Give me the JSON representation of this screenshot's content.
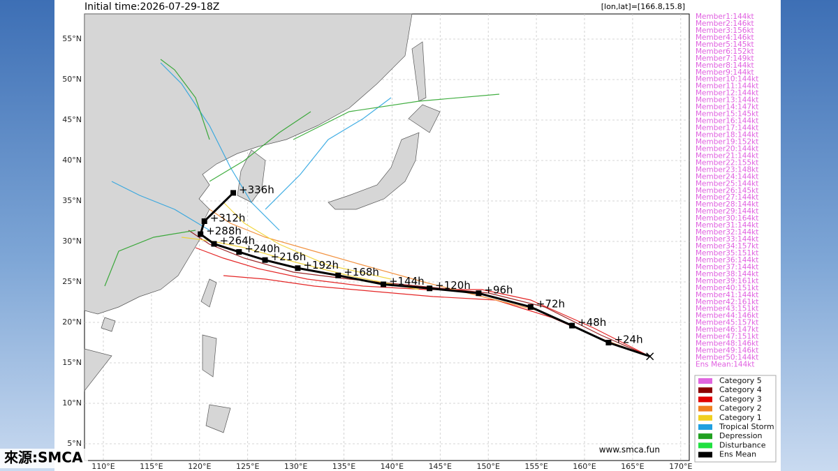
{
  "header": {
    "init_time": "Initial time:2026-07-29-18Z",
    "position": "[lon,lat]=[166.8,15.8]"
  },
  "map": {
    "lon_ticks": [
      {
        "value": 110,
        "label": "110°E"
      },
      {
        "value": 115,
        "label": "115°E"
      },
      {
        "value": 120,
        "label": "120°E"
      },
      {
        "value": 125,
        "label": "125°E"
      },
      {
        "value": 130,
        "label": "130°E"
      },
      {
        "value": 135,
        "label": "135°E"
      },
      {
        "value": 140,
        "label": "140°E"
      },
      {
        "value": 145,
        "label": "145°E"
      },
      {
        "value": 150,
        "label": "150°E"
      },
      {
        "value": 155,
        "label": "155°E"
      },
      {
        "value": 160,
        "label": "160°E"
      },
      {
        "value": 165,
        "label": "165°E"
      },
      {
        "value": 170,
        "label": "170°E"
      }
    ],
    "lat_ticks": [
      {
        "value": 5,
        "label": "5°N"
      },
      {
        "value": 10,
        "label": "10°N"
      },
      {
        "value": 15,
        "label": "15°N"
      },
      {
        "value": 20,
        "label": "20°N"
      },
      {
        "value": 25,
        "label": "25°N"
      },
      {
        "value": 30,
        "label": "30°N"
      },
      {
        "value": 35,
        "label": "35°N"
      },
      {
        "value": 40,
        "label": "40°N"
      },
      {
        "value": 45,
        "label": "45°N"
      },
      {
        "value": 50,
        "label": "50°N"
      },
      {
        "value": 55,
        "label": "55°N"
      }
    ],
    "start": {
      "lon": 166.8,
      "lat": 15.8
    },
    "mean_track": [
      {
        "label": "+24h",
        "lon": 162.5,
        "lat": 17.5
      },
      {
        "label": "+48h",
        "lon": 158.7,
        "lat": 19.6
      },
      {
        "label": "+72h",
        "lon": 154.4,
        "lat": 21.9
      },
      {
        "label": "+96h",
        "lon": 149.0,
        "lat": 23.6
      },
      {
        "label": "+120h",
        "lon": 143.9,
        "lat": 24.2
      },
      {
        "label": "+144h",
        "lon": 139.1,
        "lat": 24.7
      },
      {
        "label": "+168h",
        "lon": 134.4,
        "lat": 25.8
      },
      {
        "label": "+192h",
        "lon": 130.2,
        "lat": 26.7
      },
      {
        "label": "+216h",
        "lon": 126.8,
        "lat": 27.7
      },
      {
        "label": "+240h",
        "lon": 124.1,
        "lat": 28.7
      },
      {
        "label": "+264h",
        "lon": 121.5,
        "lat": 29.7
      },
      {
        "label": "+288h",
        "lon": 120.1,
        "lat": 30.9
      },
      {
        "label": "+312h",
        "lon": 120.5,
        "lat": 32.5
      },
      {
        "label": "+336h",
        "lon": 123.5,
        "lat": 36.0
      }
    ]
  },
  "members": [
    "Member1:144kt",
    "Member2:146kt",
    "Member3:156kt",
    "Member4:146kt",
    "Member5:145kt",
    "Member6:152kt",
    "Member7:149kt",
    "Member8:144kt",
    "Member9:144kt",
    "Member10:144kt",
    "Member11:144kt",
    "Member12:144kt",
    "Member13:144kt",
    "Member14:147kt",
    "Member15:145kt",
    "Member16:144kt",
    "Member17:144kt",
    "Member18:144kt",
    "Member19:152kt",
    "Member20:144kt",
    "Member21:144kt",
    "Member22:155kt",
    "Member23:148kt",
    "Member24:144kt",
    "Member25:144kt",
    "Member26:145kt",
    "Member27:144kt",
    "Member28:144kt",
    "Member29:144kt",
    "Member30:164kt",
    "Member31:144kt",
    "Member32:144kt",
    "Member33:144kt",
    "Member34:157kt",
    "Member35:151kt",
    "Member36:144kt",
    "Member37:144kt",
    "Member38:144kt",
    "Member39:161kt",
    "Member40:151kt",
    "Member41:144kt",
    "Member42:161kt",
    "Member43:151kt",
    "Member44:146kt",
    "Member45:157kt",
    "Member46:147kt",
    "Member47:151kt",
    "Member48:146kt",
    "Member49:146kt",
    "Member50:144kt",
    "Ens Mean:144kt"
  ],
  "legend": [
    {
      "label": "Category 5",
      "color": "#e066e0"
    },
    {
      "label": "Category 4",
      "color": "#8b0000"
    },
    {
      "label": "Category 3",
      "color": "#e00000"
    },
    {
      "label": "Category 2",
      "color": "#f08020"
    },
    {
      "label": "Category 1",
      "color": "#f0d020"
    },
    {
      "label": "Tropical Storm",
      "color": "#20a0e0"
    },
    {
      "label": "Depression",
      "color": "#20a020"
    },
    {
      "label": "Disturbance",
      "color": "#20e040"
    },
    {
      "label": "Ens Mean",
      "color": "#000000"
    }
  ],
  "footer": {
    "website": "www.smca.fun",
    "source": "來源:SMCA"
  }
}
